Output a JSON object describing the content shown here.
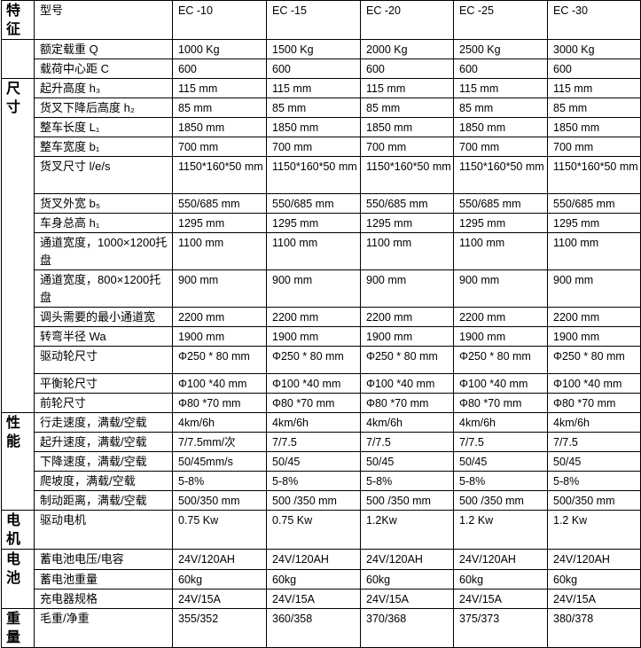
{
  "models": [
    "EC -10",
    "EC -15",
    "EC -20",
    "EC -25",
    "EC -30"
  ],
  "header": {
    "category": "特征",
    "label": "型号"
  },
  "groups": [
    {
      "category": "",
      "rows": [
        {
          "label": "额定载重 Q",
          "values": [
            "1000 Kg",
            "1500 Kg",
            "2000 Kg",
            "2500 Kg",
            "3000 Kg"
          ]
        },
        {
          "label": "载荷中心距 C",
          "values": [
            "600",
            "600",
            "600",
            "600",
            "600"
          ]
        }
      ]
    },
    {
      "category": "尺寸",
      "rows": [
        {
          "label": "起升高度 h₃",
          "values": [
            "115 mm",
            "115 mm",
            "115 mm",
            "115 mm",
            "115 mm"
          ]
        },
        {
          "label": "货叉下降后高度 h₂",
          "values": [
            "85 mm",
            "85 mm",
            "85 mm",
            "85 mm",
            "85 mm"
          ]
        },
        {
          "label": "整车长度 L₁",
          "values": [
            "1850 mm",
            "1850 mm",
            "1850 mm",
            "1850 mm",
            "1850 mm"
          ]
        },
        {
          "label": "整车宽度 b₁",
          "values": [
            "700 mm",
            "700 mm",
            "700 mm",
            "700 mm",
            "700 mm"
          ]
        },
        {
          "label": "货叉尺寸 l/e/s",
          "values": [
            "1150*160*50 mm",
            "1150*160*50 mm",
            "1150*160*50 mm",
            "1150*160*50 mm",
            "1150*160*50 mm"
          ]
        },
        {
          "label": "货叉外宽 b₅",
          "values": [
            "550/685 mm",
            "550/685 mm",
            "550/685 mm",
            "550/685 mm",
            "550/685 mm"
          ]
        },
        {
          "label": "车身总高 h₁",
          "values": [
            "1295 mm",
            "1295 mm",
            "1295 mm",
            "1295 mm",
            "1295 mm"
          ]
        },
        {
          "label": "通道宽度，1000×1200托盘",
          "values": [
            "1100 mm",
            "1100 mm",
            "1100 mm",
            "1100 mm",
            "1100 mm"
          ]
        },
        {
          "label": "通道宽度，800×1200托盘",
          "values": [
            "900 mm",
            "900 mm",
            "900 mm",
            "900 mm",
            "900 mm"
          ]
        },
        {
          "label": "调头需要的最小通道宽",
          "values": [
            "2200 mm",
            "2200 mm",
            "2200 mm",
            "2200 mm",
            "2200 mm"
          ]
        },
        {
          "label": "转弯半径 Wa",
          "values": [
            "1900 mm",
            "1900 mm",
            "1900 mm",
            "1900 mm",
            "1900 mm"
          ]
        },
        {
          "label": "驱动轮尺寸",
          "values": [
            "Φ250 * 80 mm",
            "Φ250 * 80 mm",
            "Φ250 * 80 mm",
            "Φ250 * 80 mm",
            "Φ250 * 80 mm"
          ]
        },
        {
          "label": "平衡轮尺寸",
          "values": [
            "Φ100 *40 mm",
            "Φ100 *40 mm",
            "Φ100 *40 mm",
            "Φ100 *40 mm",
            "Φ100 *40 mm"
          ]
        },
        {
          "label": "前轮尺寸",
          "values": [
            "Φ80 *70 mm",
            "Φ80 *70 mm",
            "Φ80 *70 mm",
            "Φ80 *70 mm",
            "Φ80 *70 mm"
          ]
        }
      ]
    },
    {
      "category": "性能",
      "rows": [
        {
          "label": "行走速度，满载/空载",
          "values": [
            "4km/6h",
            "4km/6h",
            "4km/6h",
            "4km/6h",
            "4km/6h"
          ]
        },
        {
          "label": "起升速度，满载/空载",
          "values": [
            "7/7.5mm/次",
            "7/7.5",
            "7/7.5",
            "7/7.5",
            "7/7.5"
          ]
        },
        {
          "label": "下降速度，满载/空载",
          "values": [
            "50/45mm/s",
            "50/45",
            "50/45",
            "50/45",
            "50/45"
          ]
        },
        {
          "label": "爬坡度，满载/空载",
          "values": [
            "5-8%",
            "5-8%",
            "5-8%",
            "5-8%",
            "5-8%"
          ]
        },
        {
          "label": "制动距离，满载/空载",
          "values": [
            "500/350 mm",
            "500 /350 mm",
            "500 /350 mm",
            "500 /350 mm",
            "500/350 mm"
          ]
        }
      ]
    },
    {
      "category": "电机",
      "rows": [
        {
          "label": "驱动电机",
          "values": [
            "0.75 Kw",
            "0.75 Kw",
            "1.2Kw",
            "1.2 Kw",
            "1.2 Kw"
          ]
        }
      ]
    },
    {
      "category": "电池",
      "rows": [
        {
          "label": "蓄电池电压/电容",
          "values": [
            "24V/120AH",
            "24V/120AH",
            "24V/120AH",
            "24V/120AH",
            "24V/120AH"
          ]
        },
        {
          "label": "蓄电池重量",
          "values": [
            "60kg",
            "60kg",
            "60kg",
            "60kg",
            "60kg"
          ]
        },
        {
          "label": "充电器规格",
          "values": [
            "24V/15A",
            "24V/15A",
            "24V/15A",
            "24V/15A",
            "24V/15A"
          ]
        }
      ]
    },
    {
      "category": "重量",
      "rows": [
        {
          "label": "毛重/净重",
          "values": [
            "355/352",
            "360/358",
            "370/368",
            "375/373",
            "380/378"
          ]
        }
      ]
    }
  ]
}
